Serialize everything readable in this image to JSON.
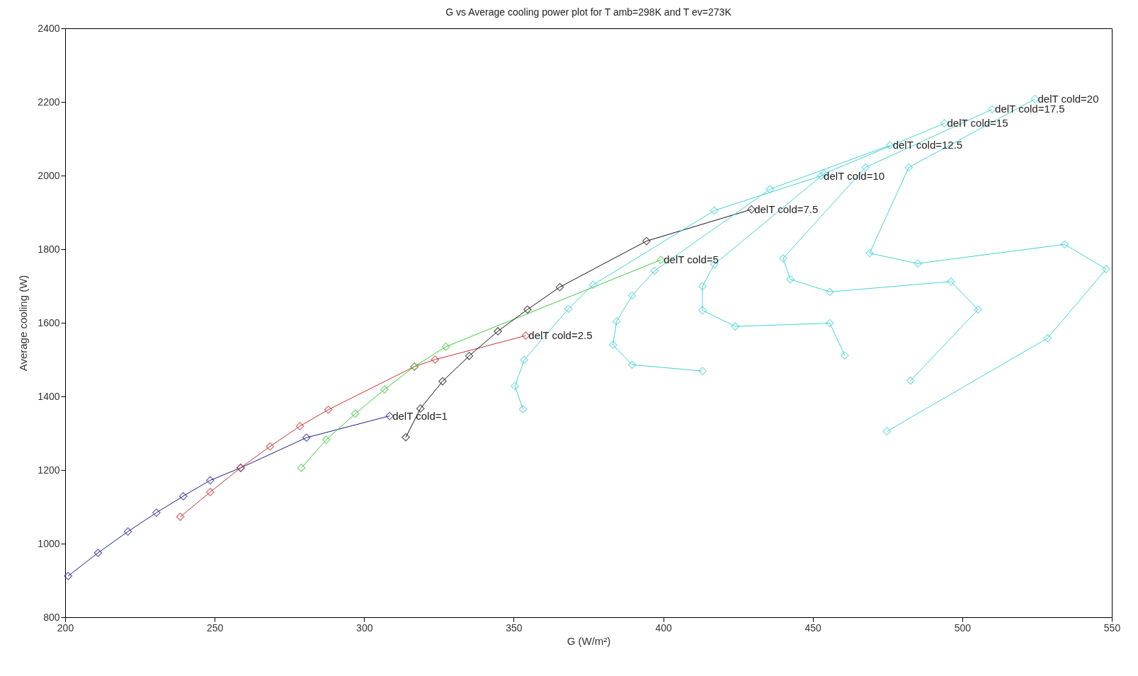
{
  "chart_data": {
    "type": "line",
    "title": "G vs Average cooling power plot for T amb=298K and T ev=273K",
    "xlabel": "G (W/m²)",
    "ylabel": "Average cooling (W)",
    "xlim": [
      200,
      550
    ],
    "xticks": [
      200,
      250,
      300,
      350,
      400,
      450,
      500,
      550
    ],
    "ylim": [
      800,
      2400
    ],
    "yticks": [
      800,
      1000,
      1200,
      1400,
      1600,
      1800,
      2000,
      2200,
      2400
    ],
    "grid": false,
    "marker": "diamond",
    "line_style": "solid",
    "series": [
      {
        "color": "#1c1c8c",
        "x": [
          201,
          211,
          221,
          230.5,
          239.5,
          248.5,
          258.7,
          280.7,
          308.5
        ],
        "values": [
          912,
          975,
          1033,
          1084,
          1129,
          1172,
          1206,
          1288,
          1347
        ]
      },
      {
        "color": "#c83232",
        "x": [
          238.5,
          248.5,
          258.7,
          268.5,
          278.5,
          288,
          316.8,
          323.7,
          354
        ],
        "values": [
          1073,
          1140,
          1206,
          1264,
          1319,
          1364,
          1481,
          1500,
          1565
        ]
      },
      {
        "color": "#3cc83c",
        "x": [
          279,
          287.3,
          297,
          306.8,
          316.8,
          327.3,
          399.2
        ],
        "values": [
          1206,
          1282,
          1353,
          1419,
          1481,
          1535,
          1771
        ]
      },
      {
        "color": "#141414",
        "x": [
          313.9,
          318.8,
          326.2,
          335.1,
          344.7,
          354.6,
          365.4,
          394.4,
          429.5
        ],
        "values": [
          1289,
          1367,
          1441,
          1510,
          1577,
          1636,
          1697,
          1822,
          1908
        ]
      },
      {
        "color": "#46d2d2",
        "x": [
          353.1,
          350.4,
          353.5,
          368.3,
          376.5,
          417.1,
          452.7
        ],
        "values": [
          1365,
          1428,
          1499,
          1638,
          1703,
          1905,
          1999
        ]
      },
      {
        "color": "#46d2d2",
        "x": [
          413.1,
          389.6,
          383.2,
          384.4,
          389.6,
          397.1,
          435.7,
          475.8
        ],
        "values": [
          1469,
          1486,
          1540,
          1604,
          1674,
          1741,
          1963,
          2082
        ]
      },
      {
        "color": "#46d2d2",
        "x": [
          460.7,
          455.7,
          424.1,
          413.1,
          413.1,
          417.1,
          453.8,
          494
        ],
        "values": [
          1511,
          1599,
          1590,
          1634,
          1699,
          1759,
          2005,
          2142
        ]
      },
      {
        "color": "#46d2d2",
        "x": [
          482.7,
          505.3,
          496.2,
          455.7,
          442.5,
          440.1,
          467.6,
          510
        ],
        "values": [
          1443,
          1636,
          1712,
          1684,
          1718,
          1775,
          2022,
          2180
        ]
      },
      {
        "color": "#46d2d2",
        "x": [
          474.8,
          528.5,
          548.1,
          534.2,
          485.1,
          469,
          482.1,
          524.3
        ],
        "values": [
          1305,
          1558,
          1746,
          1813,
          1761,
          1789,
          2022,
          2208
        ]
      }
    ],
    "annotations": [
      {
        "text": "delT cold=1",
        "x": 308.5,
        "y": 1347
      },
      {
        "text": "delT cold=2.5",
        "x": 354,
        "y": 1565
      },
      {
        "text": "delT cold=5",
        "x": 399.2,
        "y": 1771
      },
      {
        "text": "delT cold=7.5",
        "x": 429.5,
        "y": 1908
      },
      {
        "text": "delT cold=10",
        "x": 452.7,
        "y": 1999
      },
      {
        "text": "delT cold=12.5",
        "x": 475.8,
        "y": 2082
      },
      {
        "text": "delT cold=15",
        "x": 494,
        "y": 2142
      },
      {
        "text": "delT cold=17.5",
        "x": 510,
        "y": 2180
      },
      {
        "text": "delT cold=20",
        "x": 524.3,
        "y": 2208
      }
    ]
  }
}
